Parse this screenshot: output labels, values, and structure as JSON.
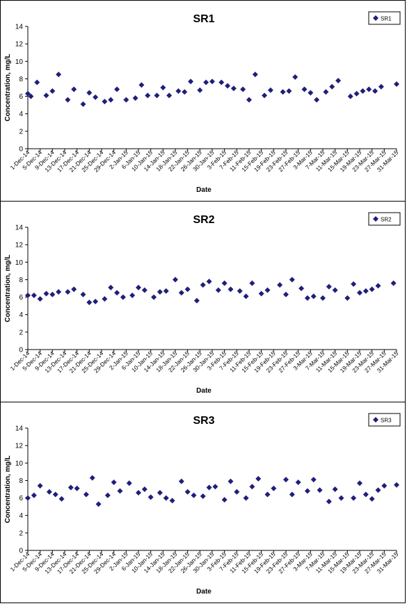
{
  "marker_color": "#1F1F7A",
  "chart_data": [
    {
      "type": "scatter",
      "title": "SR1",
      "xlabel": "Date",
      "ylabel": "Concentration, mg/L",
      "legend": "SR1",
      "legend_position": "top-right",
      "ylim": [
        0,
        14
      ],
      "yticks": [
        0,
        2,
        4,
        6,
        8,
        10,
        12,
        14
      ],
      "xlim": [
        "1-Dec-14",
        "31-Mar-15"
      ],
      "x_tick_labels": [
        "1-Dec-14",
        "5-Dec-14",
        "9-Dec-14",
        "13-Dec-14",
        "17-Dec-14",
        "21-Dec-14",
        "25-Dec-14",
        "29-Dec-14",
        "2-Jan-15",
        "6-Jan-15",
        "10-Jan-15",
        "14-Jan-15",
        "18-Jan-15",
        "22-Jan-15",
        "26-Jan-15",
        "30-Jan-15",
        "3-Feb-15",
        "7-Feb-15",
        "11-Feb-15",
        "15-Feb-15",
        "19-Feb-15",
        "23-Feb-15",
        "27-Feb-15",
        "3-Mar-15",
        "7-Mar-15",
        "11-Mar-15",
        "15-Mar-15",
        "19-Mar-15",
        "23-Mar-15",
        "27-Mar-15",
        "31-Mar-15"
      ],
      "points": [
        [
          "2014-12-01",
          6.3
        ],
        [
          "2014-12-02",
          6.0
        ],
        [
          "2014-12-04",
          7.6
        ],
        [
          "2014-12-07",
          6.1
        ],
        [
          "2014-12-09",
          6.6
        ],
        [
          "2014-12-11",
          8.5
        ],
        [
          "2014-12-14",
          5.6
        ],
        [
          "2014-12-16",
          6.8
        ],
        [
          "2014-12-19",
          5.1
        ],
        [
          "2014-12-21",
          6.4
        ],
        [
          "2014-12-23",
          5.9
        ],
        [
          "2014-12-26",
          5.4
        ],
        [
          "2014-12-28",
          5.6
        ],
        [
          "2014-12-30",
          6.8
        ],
        [
          "2015-01-02",
          5.6
        ],
        [
          "2015-01-05",
          5.8
        ],
        [
          "2015-01-07",
          7.3
        ],
        [
          "2015-01-09",
          6.1
        ],
        [
          "2015-01-12",
          6.1
        ],
        [
          "2015-01-14",
          7.0
        ],
        [
          "2015-01-16",
          6.1
        ],
        [
          "2015-01-19",
          6.6
        ],
        [
          "2015-01-21",
          6.5
        ],
        [
          "2015-01-23",
          7.7
        ],
        [
          "2015-01-26",
          6.7
        ],
        [
          "2015-01-28",
          7.6
        ],
        [
          "2015-01-30",
          7.7
        ],
        [
          "2015-02-02",
          7.6
        ],
        [
          "2015-02-04",
          7.2
        ],
        [
          "2015-02-06",
          6.9
        ],
        [
          "2015-02-09",
          6.8
        ],
        [
          "2015-02-11",
          5.6
        ],
        [
          "2015-02-13",
          8.5
        ],
        [
          "2015-02-16",
          6.1
        ],
        [
          "2015-02-18",
          6.7
        ],
        [
          "2015-02-22",
          6.5
        ],
        [
          "2015-02-24",
          6.6
        ],
        [
          "2015-02-26",
          8.2
        ],
        [
          "2015-03-01",
          6.8
        ],
        [
          "2015-03-03",
          6.4
        ],
        [
          "2015-03-05",
          5.6
        ],
        [
          "2015-03-08",
          6.5
        ],
        [
          "2015-03-10",
          7.1
        ],
        [
          "2015-03-12",
          7.8
        ],
        [
          "2015-03-16",
          6.0
        ],
        [
          "2015-03-18",
          6.3
        ],
        [
          "2015-03-20",
          6.6
        ],
        [
          "2015-03-22",
          6.8
        ],
        [
          "2015-03-24",
          6.6
        ],
        [
          "2015-03-26",
          7.1
        ],
        [
          "2015-03-31",
          7.4
        ]
      ]
    },
    {
      "type": "scatter",
      "title": "SR2",
      "xlabel": "Date",
      "ylabel": "Concentration, mg/L",
      "legend": "SR2",
      "legend_position": "top-right",
      "ylim": [
        0,
        14
      ],
      "yticks": [
        0,
        2,
        4,
        6,
        8,
        10,
        12,
        14
      ],
      "xlim": [
        "1-Dec-14",
        "31-Mar-15"
      ],
      "x_tick_labels": [
        "1-Dec-14",
        "5-Dec-14",
        "9-Dec-14",
        "13-Dec-14",
        "17-Dec-14",
        "21-Dec-14",
        "25-Dec-14",
        "29-Dec-14",
        "2-Jan-15",
        "6-Jan-15",
        "10-Jan-15",
        "14-Jan-15",
        "18-Jan-15",
        "22-Jan-15",
        "26-Jan-15",
        "30-Jan-15",
        "3-Feb-15",
        "7-Feb-15",
        "11-Feb-15",
        "15-Feb-15",
        "19-Feb-15",
        "23-Feb-15",
        "27-Feb-15",
        "3-Mar-15",
        "7-Mar-15",
        "11-Mar-15",
        "15-Mar-15",
        "19-Mar-15",
        "23-Mar-15",
        "27-Mar-15",
        "31-Mar-15"
      ],
      "points": [
        [
          "2014-12-01",
          6.2
        ],
        [
          "2014-12-03",
          6.2
        ],
        [
          "2014-12-05",
          5.8
        ],
        [
          "2014-12-07",
          6.4
        ],
        [
          "2014-12-09",
          6.3
        ],
        [
          "2014-12-11",
          6.6
        ],
        [
          "2014-12-14",
          6.6
        ],
        [
          "2014-12-16",
          6.9
        ],
        [
          "2014-12-19",
          6.3
        ],
        [
          "2014-12-21",
          5.4
        ],
        [
          "2014-12-23",
          5.5
        ],
        [
          "2014-12-26",
          5.8
        ],
        [
          "2014-12-28",
          7.1
        ],
        [
          "2014-12-30",
          6.5
        ],
        [
          "2015-01-01",
          6.0
        ],
        [
          "2015-01-04",
          6.2
        ],
        [
          "2015-01-06",
          7.1
        ],
        [
          "2015-01-08",
          6.8
        ],
        [
          "2015-01-11",
          6.0
        ],
        [
          "2015-01-13",
          6.6
        ],
        [
          "2015-01-15",
          6.7
        ],
        [
          "2015-01-18",
          8.0
        ],
        [
          "2015-01-20",
          6.5
        ],
        [
          "2015-01-22",
          6.9
        ],
        [
          "2015-01-25",
          5.6
        ],
        [
          "2015-01-27",
          7.4
        ],
        [
          "2015-01-29",
          7.8
        ],
        [
          "2015-02-01",
          6.8
        ],
        [
          "2015-02-03",
          7.6
        ],
        [
          "2015-02-05",
          6.9
        ],
        [
          "2015-02-08",
          6.7
        ],
        [
          "2015-02-10",
          6.1
        ],
        [
          "2015-02-12",
          7.6
        ],
        [
          "2015-02-15",
          6.4
        ],
        [
          "2015-02-17",
          6.8
        ],
        [
          "2015-02-21",
          7.4
        ],
        [
          "2015-02-23",
          6.3
        ],
        [
          "2015-02-25",
          8.0
        ],
        [
          "2015-02-28",
          7.0
        ],
        [
          "2015-03-02",
          5.9
        ],
        [
          "2015-03-04",
          6.1
        ],
        [
          "2015-03-07",
          5.9
        ],
        [
          "2015-03-09",
          7.2
        ],
        [
          "2015-03-11",
          6.8
        ],
        [
          "2015-03-15",
          5.9
        ],
        [
          "2015-03-17",
          7.5
        ],
        [
          "2015-03-19",
          6.5
        ],
        [
          "2015-03-21",
          6.7
        ],
        [
          "2015-03-23",
          6.9
        ],
        [
          "2015-03-25",
          7.3
        ],
        [
          "2015-03-30",
          7.6
        ]
      ]
    },
    {
      "type": "scatter",
      "title": "SR3",
      "xlabel": "Date",
      "ylabel": "Concentration, mg/L",
      "legend": "SR3",
      "legend_position": "top-right",
      "ylim": [
        0,
        14
      ],
      "yticks": [
        0,
        2,
        4,
        6,
        8,
        10,
        12,
        14
      ],
      "xlim": [
        "1-Dec-14",
        "31-Mar-15"
      ],
      "x_tick_labels": [
        "1-Dec-14",
        "5-Dec-14",
        "9-Dec-14",
        "13-Dec-14",
        "17-Dec-14",
        "21-Dec-14",
        "25-Dec-14",
        "29-Dec-14",
        "2-Jan-15",
        "6-Jan-15",
        "10-Jan-15",
        "14-Jan-15",
        "18-Jan-15",
        "22-Jan-15",
        "26-Jan-15",
        "30-Jan-15",
        "3-Feb-15",
        "7-Feb-15",
        "11-Feb-15",
        "15-Feb-15",
        "19-Feb-15",
        "23-Feb-15",
        "27-Feb-15",
        "3-Mar-15",
        "7-Mar-15",
        "11-Mar-15",
        "15-Mar-15",
        "19-Mar-15",
        "23-Mar-15",
        "27-Mar-15",
        "31-Mar-15"
      ],
      "points": [
        [
          "2014-12-01",
          6.0
        ],
        [
          "2014-12-03",
          6.3
        ],
        [
          "2014-12-05",
          7.4
        ],
        [
          "2014-12-08",
          6.7
        ],
        [
          "2014-12-10",
          6.4
        ],
        [
          "2014-12-12",
          5.9
        ],
        [
          "2014-12-15",
          7.2
        ],
        [
          "2014-12-17",
          7.1
        ],
        [
          "2014-12-20",
          6.4
        ],
        [
          "2014-12-22",
          8.3
        ],
        [
          "2014-12-24",
          5.3
        ],
        [
          "2014-12-27",
          6.3
        ],
        [
          "2014-12-29",
          7.8
        ],
        [
          "2014-12-31",
          6.8
        ],
        [
          "2015-01-03",
          7.7
        ],
        [
          "2015-01-06",
          6.6
        ],
        [
          "2015-01-08",
          7.0
        ],
        [
          "2015-01-10",
          6.1
        ],
        [
          "2015-01-13",
          6.6
        ],
        [
          "2015-01-15",
          6.0
        ],
        [
          "2015-01-17",
          5.7
        ],
        [
          "2015-01-20",
          7.9
        ],
        [
          "2015-01-22",
          6.7
        ],
        [
          "2015-01-24",
          6.3
        ],
        [
          "2015-01-27",
          6.2
        ],
        [
          "2015-01-29",
          7.2
        ],
        [
          "2015-01-31",
          7.3
        ],
        [
          "2015-02-03",
          5.8
        ],
        [
          "2015-02-05",
          7.9
        ],
        [
          "2015-02-07",
          6.7
        ],
        [
          "2015-02-10",
          6.0
        ],
        [
          "2015-02-12",
          7.3
        ],
        [
          "2015-02-14",
          8.2
        ],
        [
          "2015-02-17",
          6.4
        ],
        [
          "2015-02-19",
          7.1
        ],
        [
          "2015-02-23",
          8.1
        ],
        [
          "2015-02-25",
          6.4
        ],
        [
          "2015-02-27",
          7.8
        ],
        [
          "2015-03-02",
          6.8
        ],
        [
          "2015-03-04",
          8.1
        ],
        [
          "2015-03-06",
          6.9
        ],
        [
          "2015-03-09",
          5.6
        ],
        [
          "2015-03-11",
          7.0
        ],
        [
          "2015-03-13",
          6.0
        ],
        [
          "2015-03-17",
          6.0
        ],
        [
          "2015-03-19",
          7.7
        ],
        [
          "2015-03-21",
          6.4
        ],
        [
          "2015-03-23",
          5.9
        ],
        [
          "2015-03-25",
          6.9
        ],
        [
          "2015-03-27",
          7.4
        ],
        [
          "2015-03-31",
          7.5
        ]
      ]
    }
  ]
}
